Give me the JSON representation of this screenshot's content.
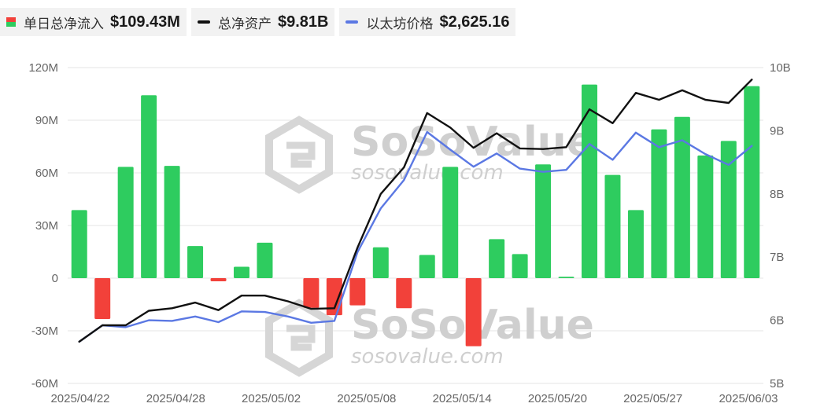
{
  "legend": {
    "flow": {
      "label": "单日总净流入",
      "value": "$109.43M"
    },
    "assets": {
      "label": "总净资产",
      "value": "$9.81B"
    },
    "price": {
      "label": "以太坊价格",
      "value": "$2,625.16"
    }
  },
  "watermark": {
    "brand": "SoSoValue",
    "site": "sosovalue.com"
  },
  "colors": {
    "positive": "#2ecc5f",
    "negative": "#f2413a",
    "assets_line": "#111111",
    "price_line": "#5b78e3",
    "grid": "#e6e6e6"
  },
  "chart_data": {
    "type": "bar",
    "x_tick_labels": [
      "2025/04/22",
      "2025/04/28",
      "2025/05/02",
      "2025/05/08",
      "2025/05/14",
      "2025/05/20",
      "2025/05/27",
      "2025/06/03"
    ],
    "left_axis": {
      "ticks": [
        "120M",
        "90M",
        "60M",
        "30M",
        "0",
        "-30M",
        "-60M"
      ],
      "ylim": [
        -60,
        120
      ]
    },
    "right_axis": {
      "ticks": [
        "10B",
        "9B",
        "8B",
        "7B",
        "6B",
        "5B"
      ],
      "ylim": [
        5,
        10
      ]
    },
    "grid": true,
    "legend_position": "top-left",
    "series": [
      {
        "name": "单日总净流入",
        "unit": "M",
        "values": [
          38.8,
          -23.3,
          63.4,
          104.2,
          64.0,
          18.3,
          -1.8,
          6.5,
          20.2,
          0,
          -16.9,
          -21.1,
          -15.5,
          17.6,
          -17.1,
          13.2,
          63.4,
          -38.8,
          22.2,
          13.7,
          64.8,
          0.8,
          110.3,
          58.8,
          38.8,
          84.8,
          91.9,
          69.9,
          78.2,
          109.4
        ]
      },
      {
        "name": "总净资产",
        "unit": "B",
        "values": [
          5.66,
          5.92,
          5.92,
          6.15,
          6.19,
          6.28,
          6.16,
          6.39,
          6.39,
          6.3,
          6.18,
          6.19,
          7.15,
          8.0,
          8.42,
          9.28,
          9.05,
          8.73,
          8.96,
          8.72,
          8.71,
          8.74,
          9.34,
          9.12,
          9.6,
          9.49,
          9.64,
          9.49,
          9.44,
          9.81
        ]
      },
      {
        "name": "以太坊价格",
        "unit": "B",
        "values": [
          5.66,
          5.92,
          5.89,
          6.0,
          5.99,
          6.06,
          5.97,
          6.14,
          6.13,
          6.06,
          5.96,
          5.99,
          7.08,
          7.77,
          8.22,
          8.98,
          8.7,
          8.43,
          8.64,
          8.4,
          8.35,
          8.38,
          8.79,
          8.54,
          8.97,
          8.74,
          8.85,
          8.63,
          8.46,
          8.76
        ]
      }
    ]
  }
}
